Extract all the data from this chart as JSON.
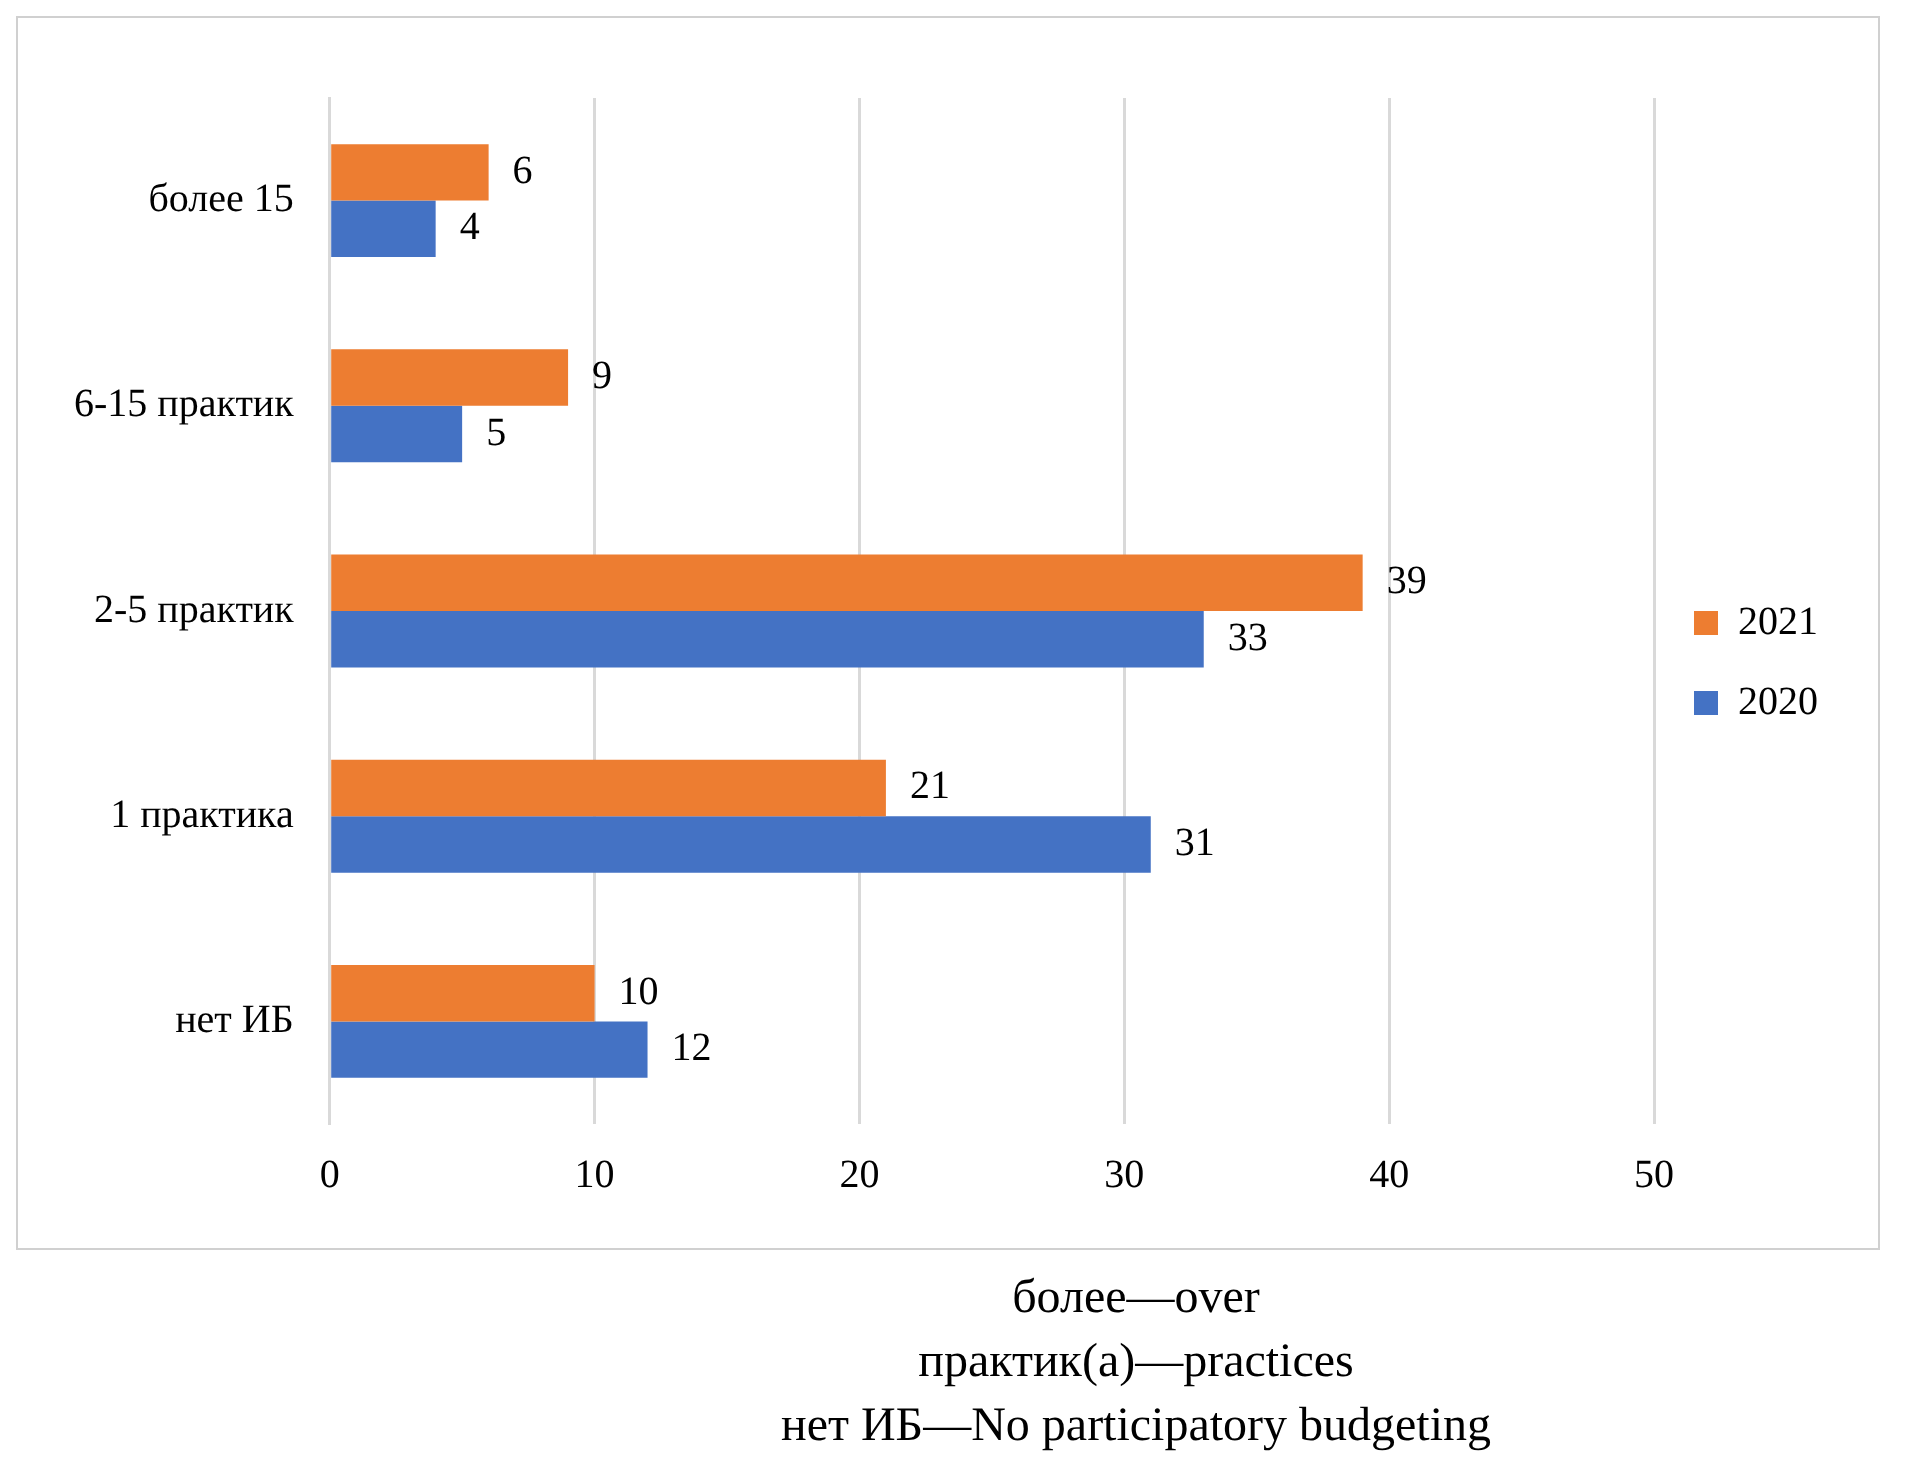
{
  "chart_data": {
    "type": "bar",
    "orientation": "horizontal",
    "categories": [
      "более 15",
      "6-15 практик",
      "2-5 практик",
      "1 практика",
      "нет ИБ"
    ],
    "series": [
      {
        "name": "2021",
        "color": "#ed7d31",
        "values": [
          6,
          9,
          39,
          21,
          10
        ]
      },
      {
        "name": "2020",
        "color": "#4472c4",
        "values": [
          4,
          5,
          33,
          31,
          12
        ]
      }
    ],
    "xlim": [
      0,
      50
    ],
    "xticks": [
      0,
      10,
      20,
      30,
      40,
      50
    ],
    "grid": "x",
    "legend": "right",
    "data_labels": true,
    "annotations": [
      "более—over",
      "практик(а)—practices",
      "нет ИБ—No participatory budgeting"
    ]
  }
}
